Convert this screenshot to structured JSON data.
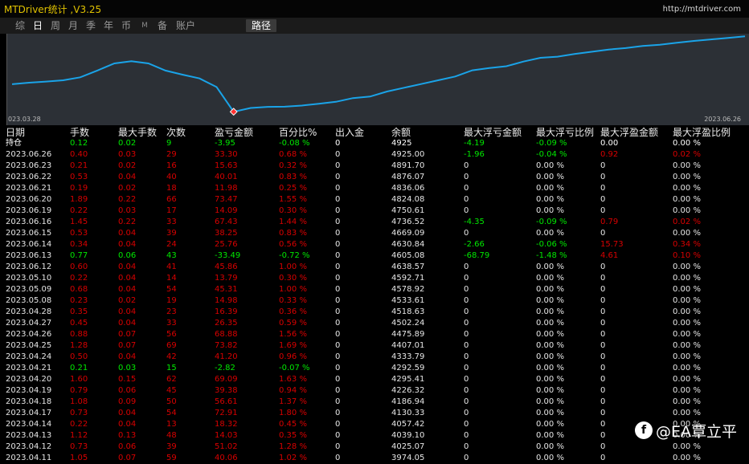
{
  "app": {
    "title": "MTDriver统计 ,V3.25",
    "url": "http://mtdriver.com",
    "titlebar_mark": "'"
  },
  "tabs": [
    {
      "label": "综",
      "active": false
    },
    {
      "label": "日",
      "active": true
    },
    {
      "label": "周",
      "active": false
    },
    {
      "label": "月",
      "active": false
    },
    {
      "label": "季",
      "active": false
    },
    {
      "label": "年",
      "active": false
    },
    {
      "label": "币",
      "active": false
    },
    {
      "label": "M",
      "active": false
    },
    {
      "label": "备",
      "active": false
    },
    {
      "label": "账户",
      "active": false
    },
    {
      "label": "路径",
      "active": false
    }
  ],
  "chart_data": {
    "type": "line",
    "title": "",
    "xlabel": "",
    "ylabel": "",
    "grid": false,
    "x_start_label": "023.03.28",
    "x_end_label": "2023.06.26",
    "series": [
      {
        "color": "#1aa3e8",
        "values": [
          4719,
          4727,
          4733,
          4740,
          4756,
          4792,
          4830,
          4842,
          4830,
          4792,
          4770,
          4750,
          4704,
          4572,
          4592,
          4598,
          4599,
          4605,
          4615,
          4625,
          4645,
          4653,
          4680,
          4700,
          4720,
          4740,
          4760,
          4793,
          4805,
          4815,
          4840,
          4860,
          4866,
          4880,
          4892,
          4904,
          4912,
          4923,
          4930,
          4940,
          4950,
          4958,
          4966,
          4975
        ]
      }
    ],
    "marker_index": 13,
    "line_color": "#1aa3e8"
  },
  "table": {
    "headers": [
      "日期",
      "手数",
      "最大手数",
      "次数",
      "盈亏金额",
      "百分比%",
      "出入金",
      "余额",
      "最大浮亏金额",
      "最大浮亏比例",
      "最大浮盈金额",
      "最大浮盈比例"
    ],
    "summary": [
      "持仓",
      "0.12",
      "0.02",
      "9",
      "-3.95",
      "-0.08 %",
      "0",
      "4925",
      "-4.19",
      "-0.09 %",
      "0.00",
      "0.00 %"
    ],
    "rows": [
      [
        "2023.06.26",
        "0.40",
        "0.03",
        "29",
        "33.30",
        "0.68 %",
        "0",
        "4925.00",
        "-1.96",
        "-0.04 %",
        "0.92",
        "0.02 %"
      ],
      [
        "2023.06.23",
        "0.21",
        "0.02",
        "16",
        "15.63",
        "0.32 %",
        "0",
        "4891.70",
        "0",
        "0.00 %",
        "0",
        "0.00 %"
      ],
      [
        "2023.06.22",
        "0.53",
        "0.04",
        "40",
        "40.01",
        "0.83 %",
        "0",
        "4876.07",
        "0",
        "0.00 %",
        "0",
        "0.00 %"
      ],
      [
        "2023.06.21",
        "0.19",
        "0.02",
        "18",
        "11.98",
        "0.25 %",
        "0",
        "4836.06",
        "0",
        "0.00 %",
        "0",
        "0.00 %"
      ],
      [
        "2023.06.20",
        "1.89",
        "0.22",
        "66",
        "73.47",
        "1.55 %",
        "0",
        "4824.08",
        "0",
        "0.00 %",
        "0",
        "0.00 %"
      ],
      [
        "2023.06.19",
        "0.22",
        "0.03",
        "17",
        "14.09",
        "0.30 %",
        "0",
        "4750.61",
        "0",
        "0.00 %",
        "0",
        "0.00 %"
      ],
      [
        "2023.06.16",
        "1.45",
        "0.22",
        "33",
        "67.43",
        "1.44 %",
        "0",
        "4736.52",
        "-4.35",
        "-0.09 %",
        "0.79",
        "0.02 %"
      ],
      [
        "2023.06.15",
        "0.53",
        "0.04",
        "39",
        "38.25",
        "0.83 %",
        "0",
        "4669.09",
        "0",
        "0.00 %",
        "0",
        "0.00 %"
      ],
      [
        "2023.06.14",
        "0.34",
        "0.04",
        "24",
        "25.76",
        "0.56 %",
        "0",
        "4630.84",
        "-2.66",
        "-0.06 %",
        "15.73",
        "0.34 %"
      ],
      [
        "2023.06.13",
        "0.77",
        "0.06",
        "43",
        "-33.49",
        "-0.72 %",
        "0",
        "4605.08",
        "-68.79",
        "-1.48 %",
        "4.61",
        "0.10 %"
      ],
      [
        "2023.06.12",
        "0.60",
        "0.04",
        "41",
        "45.86",
        "1.00 %",
        "0",
        "4638.57",
        "0",
        "0.00 %",
        "0",
        "0.00 %"
      ],
      [
        "2023.05.10",
        "0.22",
        "0.04",
        "14",
        "13.79",
        "0.30 %",
        "0",
        "4592.71",
        "0",
        "0.00 %",
        "0",
        "0.00 %"
      ],
      [
        "2023.05.09",
        "0.68",
        "0.04",
        "54",
        "45.31",
        "1.00 %",
        "0",
        "4578.92",
        "0",
        "0.00 %",
        "0",
        "0.00 %"
      ],
      [
        "2023.05.08",
        "0.23",
        "0.02",
        "19",
        "14.98",
        "0.33 %",
        "0",
        "4533.61",
        "0",
        "0.00 %",
        "0",
        "0.00 %"
      ],
      [
        "2023.04.28",
        "0.35",
        "0.04",
        "23",
        "16.39",
        "0.36 %",
        "0",
        "4518.63",
        "0",
        "0.00 %",
        "0",
        "0.00 %"
      ],
      [
        "2023.04.27",
        "0.45",
        "0.04",
        "33",
        "26.35",
        "0.59 %",
        "0",
        "4502.24",
        "0",
        "0.00 %",
        "0",
        "0.00 %"
      ],
      [
        "2023.04.26",
        "0.88",
        "0.07",
        "56",
        "68.88",
        "1.56 %",
        "0",
        "4475.89",
        "0",
        "0.00 %",
        "0",
        "0.00 %"
      ],
      [
        "2023.04.25",
        "1.28",
        "0.07",
        "69",
        "73.82",
        "1.69 %",
        "0",
        "4407.01",
        "0",
        "0.00 %",
        "0",
        "0.00 %"
      ],
      [
        "2023.04.24",
        "0.50",
        "0.04",
        "42",
        "41.20",
        "0.96 %",
        "0",
        "4333.79",
        "0",
        "0.00 %",
        "0",
        "0.00 %"
      ],
      [
        "2023.04.21",
        "0.21",
        "0.03",
        "15",
        "-2.82",
        "-0.07 %",
        "0",
        "4292.59",
        "0",
        "0.00 %",
        "0",
        "0.00 %"
      ],
      [
        "2023.04.20",
        "1.60",
        "0.15",
        "62",
        "69.09",
        "1.63 %",
        "0",
        "4295.41",
        "0",
        "0.00 %",
        "0",
        "0.00 %"
      ],
      [
        "2023.04.19",
        "0.79",
        "0.06",
        "45",
        "39.38",
        "0.94 %",
        "0",
        "4226.32",
        "0",
        "0.00 %",
        "0",
        "0.00 %"
      ],
      [
        "2023.04.18",
        "1.08",
        "0.09",
        "50",
        "56.61",
        "1.37 %",
        "0",
        "4186.94",
        "0",
        "0.00 %",
        "0",
        "0.00 %"
      ],
      [
        "2023.04.17",
        "0.73",
        "0.04",
        "54",
        "72.91",
        "1.80 %",
        "0",
        "4130.33",
        "0",
        "0.00 %",
        "0",
        "0.00 %"
      ],
      [
        "2023.04.14",
        "0.22",
        "0.04",
        "13",
        "18.32",
        "0.45 %",
        "0",
        "4057.42",
        "0",
        "0.00 %",
        "0",
        "0.00 %"
      ],
      [
        "2023.04.13",
        "1.12",
        "0.13",
        "48",
        "14.03",
        "0.35 %",
        "0",
        "4039.10",
        "0",
        "0.00 %",
        "0",
        "0.00 %"
      ],
      [
        "2023.04.12",
        "0.73",
        "0.06",
        "39",
        "51.02",
        "1.28 %",
        "0",
        "4025.07",
        "0",
        "0.00 %",
        "0",
        "0.00 %"
      ],
      [
        "2023.04.11",
        "1.05",
        "0.07",
        "59",
        "40.06",
        "1.02 %",
        "0",
        "3974.05",
        "0",
        "0.00 %",
        "0",
        "0.00 %"
      ]
    ]
  },
  "watermark": {
    "text": "@EA覃立平",
    "icon": "facebook-icon"
  }
}
